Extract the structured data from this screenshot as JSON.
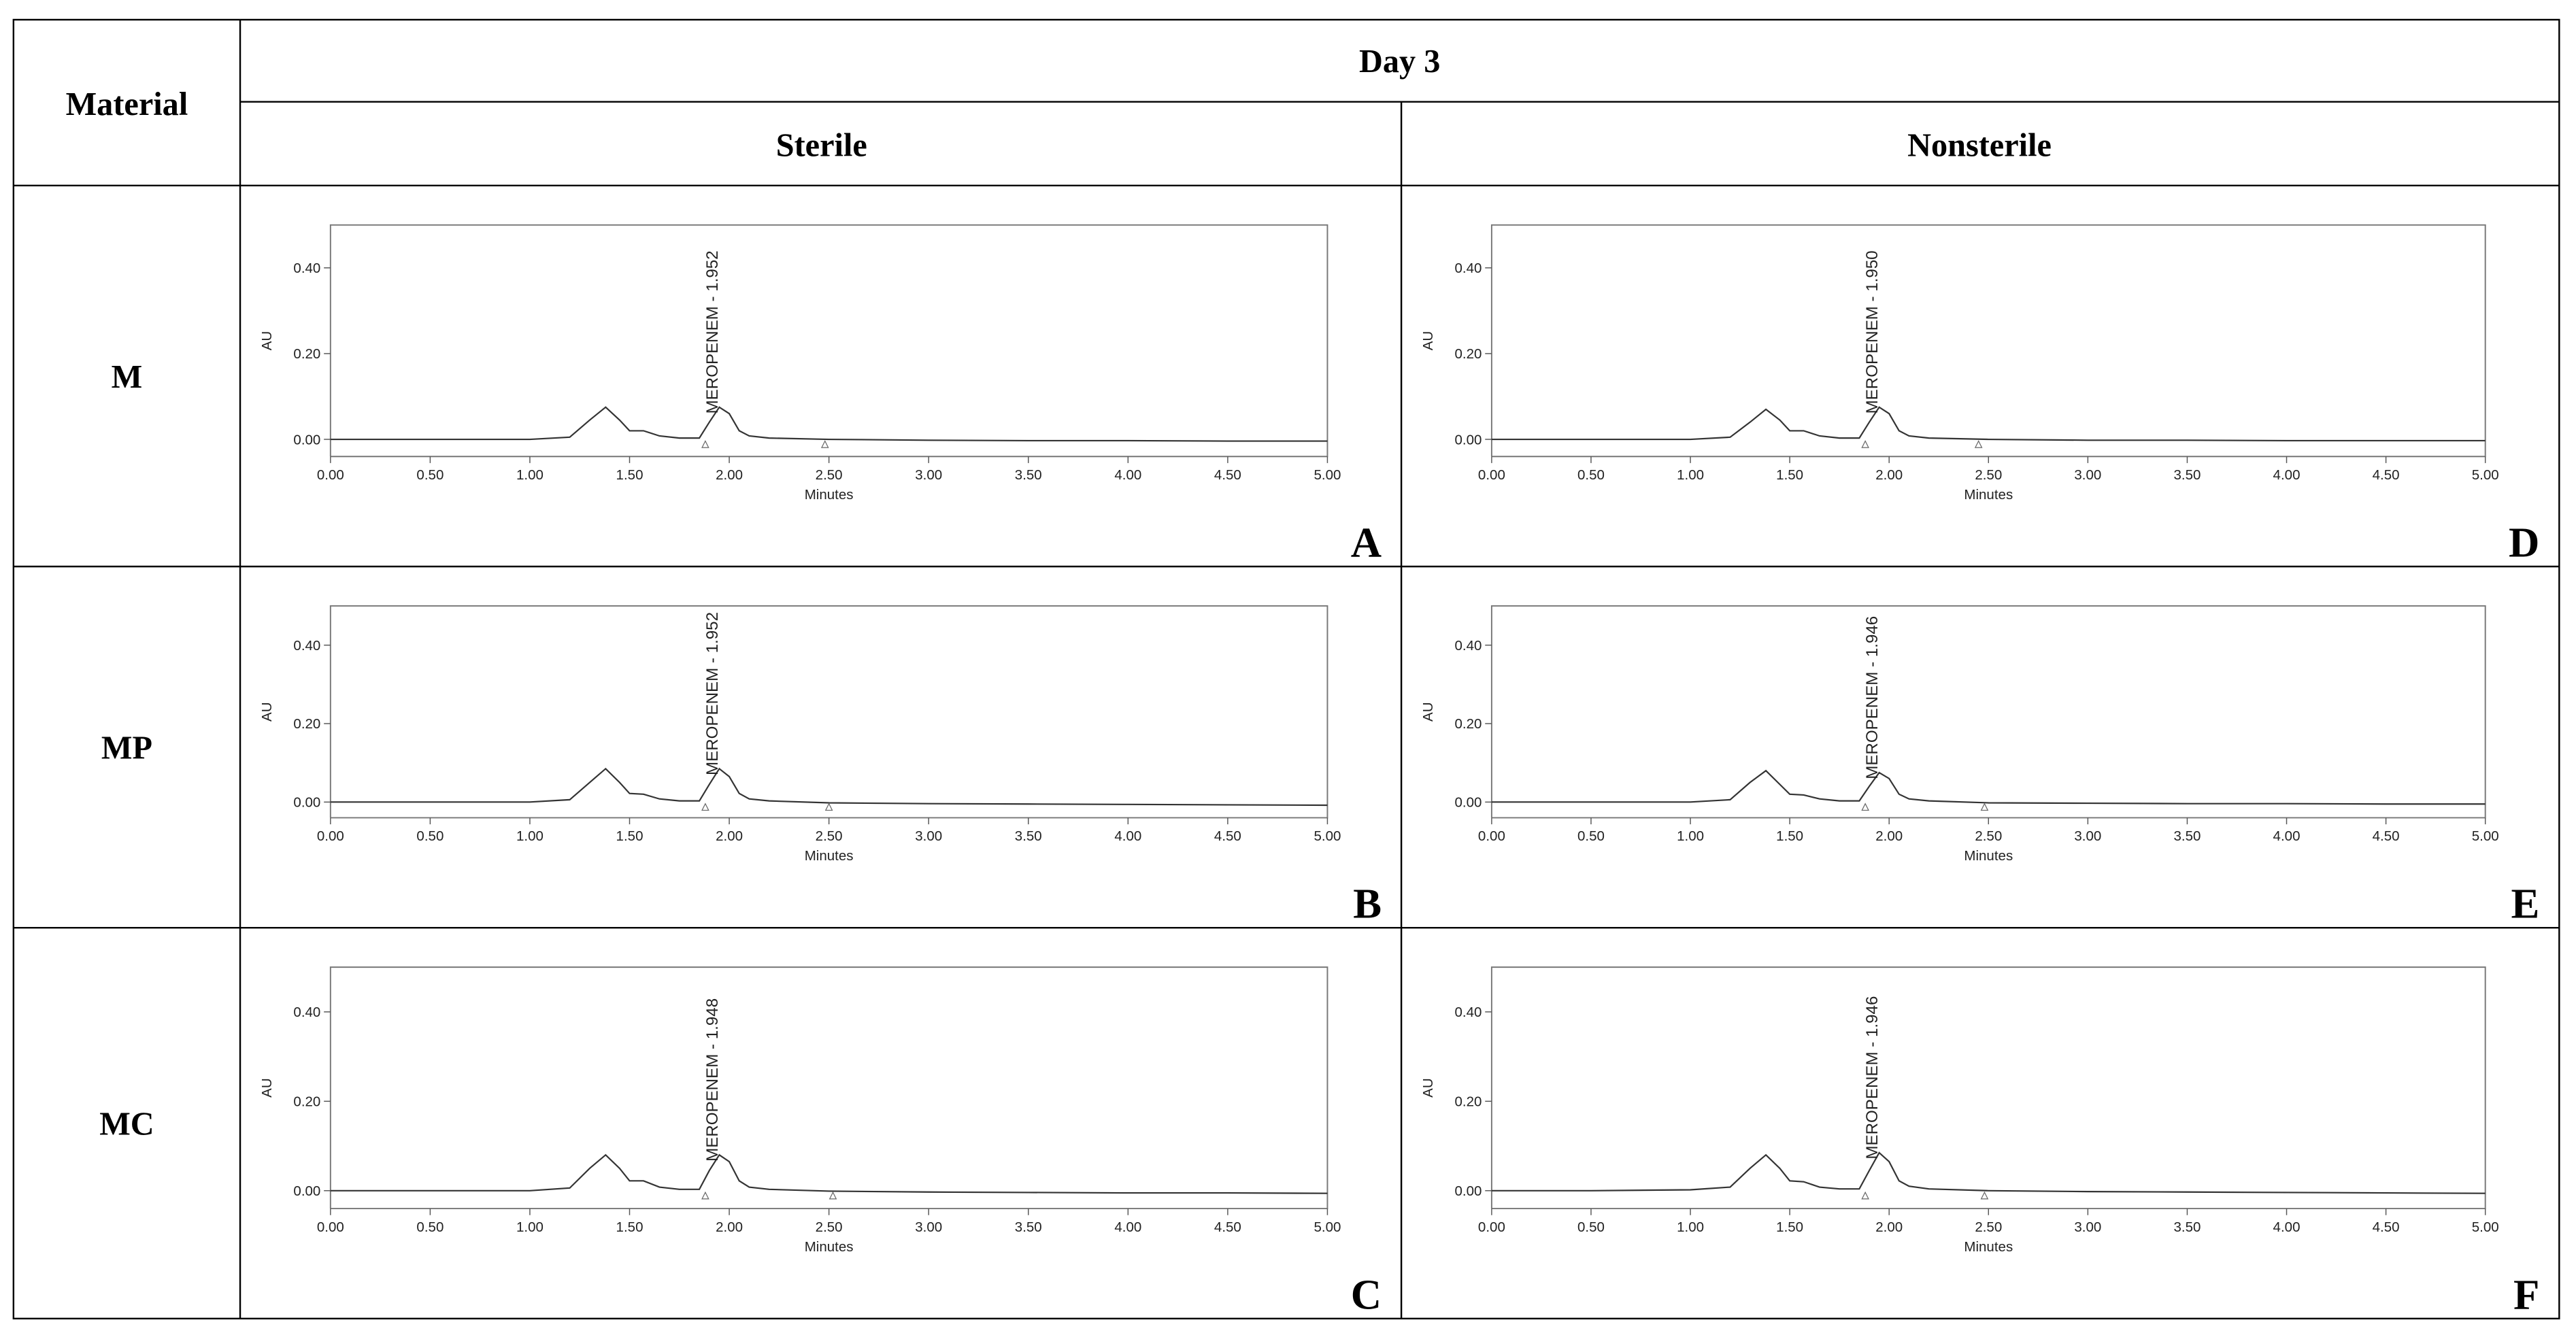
{
  "table": {
    "header": {
      "corner": "Material",
      "group": "Day 3",
      "columns": [
        "Sterile",
        "Nonsterile"
      ]
    },
    "rows": [
      {
        "material": "M",
        "panels": [
          {
            "type": "line",
            "label": "A",
            "xlabel": "Minutes",
            "ylabel": "AU",
            "annotation": "MEROPENEM - 1.952",
            "x": [
              0,
              0.5,
              1.0,
              1.2,
              1.3,
              1.38,
              1.45,
              1.5,
              1.57,
              1.65,
              1.75,
              1.85,
              1.9,
              1.95,
              2.0,
              2.05,
              2.1,
              2.2,
              2.5,
              3.0,
              3.5,
              4.0,
              4.5,
              5.0
            ],
            "values": [
              0,
              0,
              0,
              0.005,
              0.045,
              0.075,
              0.045,
              0.02,
              0.02,
              0.008,
              0.003,
              0.003,
              0.04,
              0.075,
              0.06,
              0.02,
              0.008,
              0.003,
              0,
              -0.002,
              -0.003,
              -0.003,
              -0.004,
              -0.004
            ],
            "marks_x": [
              1.88,
              2.48
            ],
            "xlim": [
              0,
              5
            ],
            "ylim": [
              -0.04,
              0.5
            ],
            "xticks": [
              {
                "value": 0,
                "label": "0.00"
              },
              {
                "value": 0.5,
                "label": "0.50"
              },
              {
                "value": 1,
                "label": "1.00"
              },
              {
                "value": 1.5,
                "label": "1.50"
              },
              {
                "value": 2,
                "label": "2.00"
              },
              {
                "value": 2.5,
                "label": "2.50"
              },
              {
                "value": 3,
                "label": "3.00"
              },
              {
                "value": 3.5,
                "label": "3.50"
              },
              {
                "value": 4,
                "label": "4.00"
              },
              {
                "value": 4.5,
                "label": "4.50"
              },
              {
                "value": 5,
                "label": "5.00"
              }
            ],
            "yticks": [
              {
                "value": 0,
                "label": "0.00"
              },
              {
                "value": 0.2,
                "label": "0.20"
              },
              {
                "value": 0.4,
                "label": "0.40"
              }
            ]
          },
          {
            "type": "line",
            "label": "D",
            "xlabel": "Minutes",
            "ylabel": "AU",
            "annotation": "MEROPENEM - 1.950",
            "x": [
              0,
              0.5,
              1.0,
              1.2,
              1.3,
              1.38,
              1.45,
              1.5,
              1.57,
              1.65,
              1.75,
              1.85,
              1.9,
              1.95,
              2.0,
              2.05,
              2.1,
              2.2,
              2.5,
              3.0,
              3.5,
              4.0,
              4.5,
              5.0
            ],
            "values": [
              0,
              0,
              0,
              0.005,
              0.04,
              0.07,
              0.045,
              0.02,
              0.02,
              0.008,
              0.003,
              0.003,
              0.04,
              0.075,
              0.06,
              0.02,
              0.008,
              0.003,
              0,
              -0.002,
              -0.002,
              -0.003,
              -0.003,
              -0.003
            ],
            "marks_x": [
              1.88,
              2.45
            ],
            "xlim": [
              0,
              5
            ],
            "ylim": [
              -0.04,
              0.5
            ],
            "xticks": [
              {
                "value": 0,
                "label": "0.00"
              },
              {
                "value": 0.5,
                "label": "0.50"
              },
              {
                "value": 1,
                "label": "1.00"
              },
              {
                "value": 1.5,
                "label": "1.50"
              },
              {
                "value": 2,
                "label": "2.00"
              },
              {
                "value": 2.5,
                "label": "2.50"
              },
              {
                "value": 3,
                "label": "3.00"
              },
              {
                "value": 3.5,
                "label": "3.50"
              },
              {
                "value": 4,
                "label": "4.00"
              },
              {
                "value": 4.5,
                "label": "4.50"
              },
              {
                "value": 5,
                "label": "5.00"
              }
            ],
            "yticks": [
              {
                "value": 0,
                "label": "0.00"
              },
              {
                "value": 0.2,
                "label": "0.20"
              },
              {
                "value": 0.4,
                "label": "0.40"
              }
            ]
          }
        ]
      },
      {
        "material": "MP",
        "panels": [
          {
            "type": "line",
            "label": "B",
            "xlabel": "Minutes",
            "ylabel": "AU",
            "annotation": "MEROPENEM - 1.952",
            "x": [
              0,
              0.5,
              1.0,
              1.2,
              1.3,
              1.38,
              1.45,
              1.5,
              1.57,
              1.65,
              1.75,
              1.85,
              1.9,
              1.95,
              2.0,
              2.05,
              2.1,
              2.2,
              2.5,
              3.0,
              3.5,
              4.0,
              4.5,
              5.0
            ],
            "values": [
              0,
              0,
              0,
              0.006,
              0.05,
              0.085,
              0.05,
              0.022,
              0.02,
              0.008,
              0.003,
              0.003,
              0.045,
              0.085,
              0.065,
              0.022,
              0.008,
              0.003,
              -0.002,
              -0.004,
              -0.005,
              -0.006,
              -0.007,
              -0.008
            ],
            "marks_x": [
              1.88,
              2.5
            ],
            "xlim": [
              0,
              5
            ],
            "ylim": [
              -0.04,
              0.5
            ],
            "xticks": [
              {
                "value": 0,
                "label": "0.00"
              },
              {
                "value": 0.5,
                "label": "0.50"
              },
              {
                "value": 1,
                "label": "1.00"
              },
              {
                "value": 1.5,
                "label": "1.50"
              },
              {
                "value": 2,
                "label": "2.00"
              },
              {
                "value": 2.5,
                "label": "2.50"
              },
              {
                "value": 3,
                "label": "3.00"
              },
              {
                "value": 3.5,
                "label": "3.50"
              },
              {
                "value": 4,
                "label": "4.00"
              },
              {
                "value": 4.5,
                "label": "4.50"
              },
              {
                "value": 5,
                "label": "5.00"
              }
            ],
            "yticks": [
              {
                "value": 0,
                "label": "0.00"
              },
              {
                "value": 0.2,
                "label": "0.20"
              },
              {
                "value": 0.4,
                "label": "0.40"
              }
            ]
          },
          {
            "type": "line",
            "label": "E",
            "xlabel": "Minutes",
            "ylabel": "AU",
            "annotation": "MEROPENEM - 1.946",
            "x": [
              0,
              0.5,
              1.0,
              1.2,
              1.3,
              1.38,
              1.45,
              1.5,
              1.57,
              1.65,
              1.75,
              1.85,
              1.9,
              1.95,
              2.0,
              2.05,
              2.1,
              2.2,
              2.5,
              3.0,
              3.5,
              4.0,
              4.5,
              5.0
            ],
            "values": [
              0,
              0,
              0,
              0.006,
              0.05,
              0.08,
              0.045,
              0.02,
              0.018,
              0.008,
              0.003,
              0.003,
              0.04,
              0.075,
              0.06,
              0.02,
              0.008,
              0.003,
              -0.002,
              -0.003,
              -0.004,
              -0.004,
              -0.005,
              -0.005
            ],
            "marks_x": [
              1.88,
              2.48
            ],
            "xlim": [
              0,
              5
            ],
            "ylim": [
              -0.04,
              0.5
            ],
            "xticks": [
              {
                "value": 0,
                "label": "0.00"
              },
              {
                "value": 0.5,
                "label": "0.50"
              },
              {
                "value": 1,
                "label": "1.00"
              },
              {
                "value": 1.5,
                "label": "1.50"
              },
              {
                "value": 2,
                "label": "2.00"
              },
              {
                "value": 2.5,
                "label": "2.50"
              },
              {
                "value": 3,
                "label": "3.00"
              },
              {
                "value": 3.5,
                "label": "3.50"
              },
              {
                "value": 4,
                "label": "4.00"
              },
              {
                "value": 4.5,
                "label": "4.50"
              },
              {
                "value": 5,
                "label": "5.00"
              }
            ],
            "yticks": [
              {
                "value": 0,
                "label": "0.00"
              },
              {
                "value": 0.2,
                "label": "0.20"
              },
              {
                "value": 0.4,
                "label": "0.40"
              }
            ]
          }
        ]
      },
      {
        "material": "MC",
        "panels": [
          {
            "type": "line",
            "label": "C",
            "xlabel": "Minutes",
            "ylabel": "AU",
            "annotation": "MEROPENEM - 1.948",
            "x": [
              0,
              0.5,
              1.0,
              1.2,
              1.3,
              1.38,
              1.45,
              1.5,
              1.57,
              1.65,
              1.75,
              1.85,
              1.9,
              1.95,
              2.0,
              2.05,
              2.1,
              2.2,
              2.5,
              3.0,
              3.5,
              4.0,
              4.5,
              5.0
            ],
            "values": [
              0,
              0,
              0,
              0.006,
              0.05,
              0.08,
              0.05,
              0.022,
              0.022,
              0.008,
              0.003,
              0.003,
              0.045,
              0.08,
              0.065,
              0.022,
              0.008,
              0.003,
              -0.001,
              -0.003,
              -0.004,
              -0.005,
              -0.005,
              -0.006
            ],
            "marks_x": [
              1.88,
              2.52
            ],
            "xlim": [
              0,
              5
            ],
            "ylim": [
              -0.04,
              0.5
            ],
            "xticks": [
              {
                "value": 0,
                "label": "0.00"
              },
              {
                "value": 0.5,
                "label": "0.50"
              },
              {
                "value": 1,
                "label": "1.00"
              },
              {
                "value": 1.5,
                "label": "1.50"
              },
              {
                "value": 2,
                "label": "2.00"
              },
              {
                "value": 2.5,
                "label": "2.50"
              },
              {
                "value": 3,
                "label": "3.00"
              },
              {
                "value": 3.5,
                "label": "3.50"
              },
              {
                "value": 4,
                "label": "4.00"
              },
              {
                "value": 4.5,
                "label": "4.50"
              },
              {
                "value": 5,
                "label": "5.00"
              }
            ],
            "yticks": [
              {
                "value": 0,
                "label": "0.00"
              },
              {
                "value": 0.2,
                "label": "0.20"
              },
              {
                "value": 0.4,
                "label": "0.40"
              }
            ]
          },
          {
            "type": "line",
            "label": "F",
            "xlabel": "Minutes",
            "ylabel": "AU",
            "annotation": "MEROPENEM - 1.946",
            "x": [
              0,
              0.5,
              1.0,
              1.2,
              1.3,
              1.38,
              1.45,
              1.5,
              1.57,
              1.65,
              1.75,
              1.85,
              1.9,
              1.95,
              2.0,
              2.05,
              2.1,
              2.2,
              2.5,
              3.0,
              3.5,
              4.0,
              4.5,
              5.0
            ],
            "values": [
              0,
              0,
              0.002,
              0.008,
              0.05,
              0.08,
              0.05,
              0.022,
              0.02,
              0.008,
              0.004,
              0.004,
              0.045,
              0.085,
              0.065,
              0.022,
              0.01,
              0.004,
              0,
              -0.002,
              -0.003,
              -0.004,
              -0.005,
              -0.006
            ],
            "marks_x": [
              1.88,
              2.48
            ],
            "xlim": [
              0,
              5
            ],
            "ylim": [
              -0.04,
              0.5
            ],
            "xticks": [
              {
                "value": 0,
                "label": "0.00"
              },
              {
                "value": 0.5,
                "label": "0.50"
              },
              {
                "value": 1,
                "label": "1.00"
              },
              {
                "value": 1.5,
                "label": "1.50"
              },
              {
                "value": 2,
                "label": "2.00"
              },
              {
                "value": 2.5,
                "label": "2.50"
              },
              {
                "value": 3,
                "label": "3.00"
              },
              {
                "value": 3.5,
                "label": "3.50"
              },
              {
                "value": 4,
                "label": "4.00"
              },
              {
                "value": 4.5,
                "label": "4.50"
              },
              {
                "value": 5,
                "label": "5.00"
              }
            ],
            "yticks": [
              {
                "value": 0,
                "label": "0.00"
              },
              {
                "value": 0.2,
                "label": "0.20"
              },
              {
                "value": 0.4,
                "label": "0.40"
              }
            ]
          }
        ]
      }
    ]
  }
}
